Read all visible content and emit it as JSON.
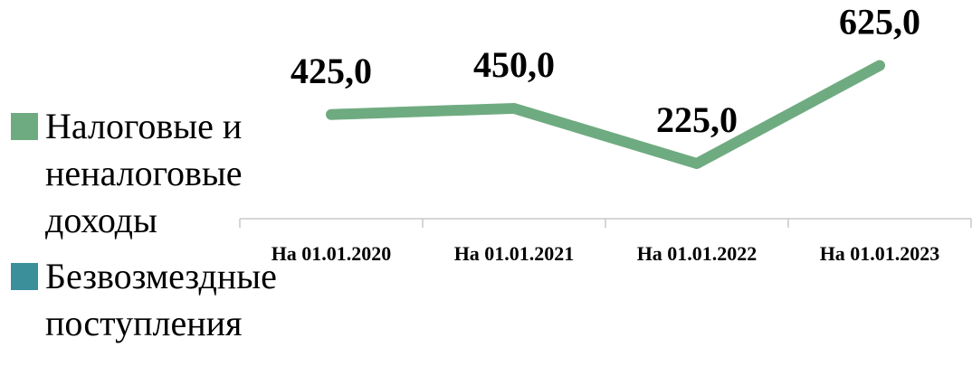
{
  "chart_data": {
    "type": "line",
    "categories": [
      "На 01.01.2020",
      "На 01.01.2021",
      "На 01.01.2022",
      "На 01.01.2023"
    ],
    "series": [
      {
        "name": "Налоговые и неналоговые доходы",
        "color": "#6fab80",
        "values": [
          425,
          450,
          225,
          625
        ],
        "value_labels": [
          "425,0",
          "450,0",
          "225,0",
          "625,0"
        ]
      },
      {
        "name": "Безвозмездные поступления",
        "color": "#3a8f9b",
        "values": [
          null,
          null,
          null,
          null
        ]
      }
    ],
    "ylim": [
      0,
      800
    ]
  }
}
